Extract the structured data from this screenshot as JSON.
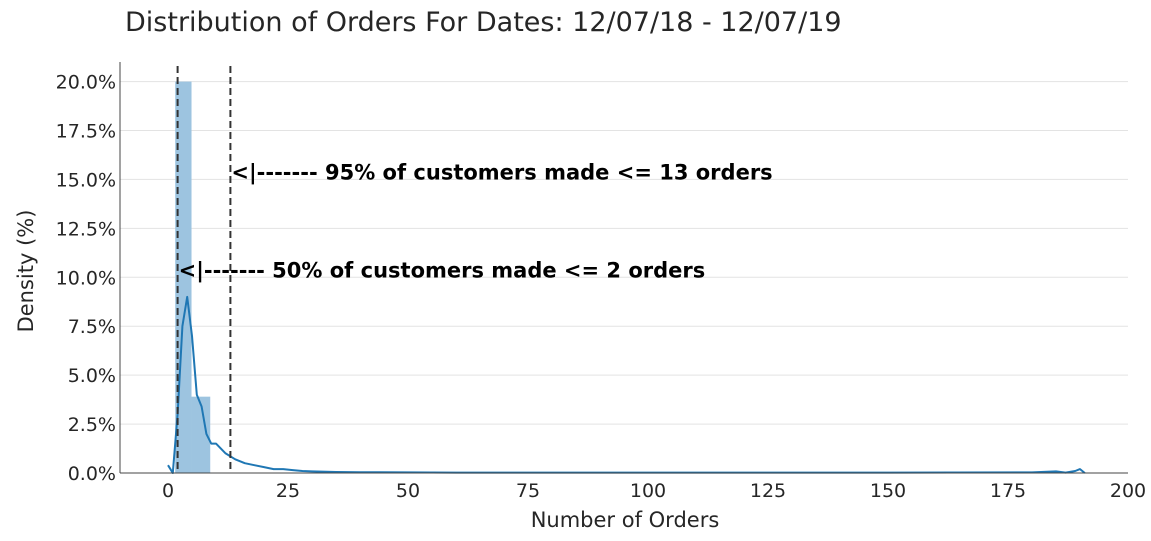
{
  "chart_data": {
    "type": "histogram",
    "title": "Distribution of Orders For Dates: 12/07/18 - 12/07/19",
    "xlabel": "Number of Orders",
    "ylabel": "Density (%)",
    "xlim": [
      -10,
      200
    ],
    "ylim": [
      0,
      0.21
    ],
    "x_ticks": [
      0,
      25,
      50,
      75,
      100,
      125,
      150,
      175,
      200
    ],
    "y_ticks": [
      0,
      0.025,
      0.05,
      0.075,
      0.1,
      0.125,
      0.15,
      0.175,
      0.2
    ],
    "y_tick_labels": [
      "0.0%",
      "2.5%",
      "5.0%",
      "7.5%",
      "10.0%",
      "12.5%",
      "15.0%",
      "17.5%",
      "20.0%"
    ],
    "grid": "horizontal",
    "histogram": {
      "bins": [
        {
          "x0": 1.5,
          "x1": 4.9,
          "density": 0.2
        },
        {
          "x0": 4.9,
          "x1": 8.8,
          "density": 0.039
        }
      ]
    },
    "kde": {
      "x": [
        0,
        1,
        2,
        3,
        4,
        5,
        6,
        7,
        8,
        9,
        10,
        12,
        14,
        16,
        18,
        20,
        22,
        24,
        26,
        28,
        30,
        35,
        40,
        50,
        60,
        80,
        100,
        120,
        150,
        180,
        185,
        187,
        189,
        190,
        191
      ],
      "y": [
        0.004,
        0.0,
        0.03,
        0.075,
        0.09,
        0.07,
        0.04,
        0.034,
        0.02,
        0.015,
        0.015,
        0.01,
        0.007,
        0.005,
        0.004,
        0.003,
        0.002,
        0.002,
        0.0015,
        0.001,
        0.0008,
        0.0005,
        0.0004,
        0.0003,
        0.0002,
        0.0002,
        0.0002,
        0.0002,
        0.0002,
        0.0003,
        0.0008,
        0.0002,
        0.001,
        0.002,
        0.0
      ]
    },
    "vlines": [
      {
        "x": 2,
        "label": "<|------- 50% of customers made <= 2 orders",
        "label_y": 0.1
      },
      {
        "x": 13,
        "label": "<|------- 95% of customers made <= 13 orders",
        "label_y": 0.15
      }
    ],
    "colors": {
      "bar": "#9dc4e0",
      "kde": "#1f77b4",
      "grid": "#e3e3e3",
      "vline": "#333333"
    }
  }
}
